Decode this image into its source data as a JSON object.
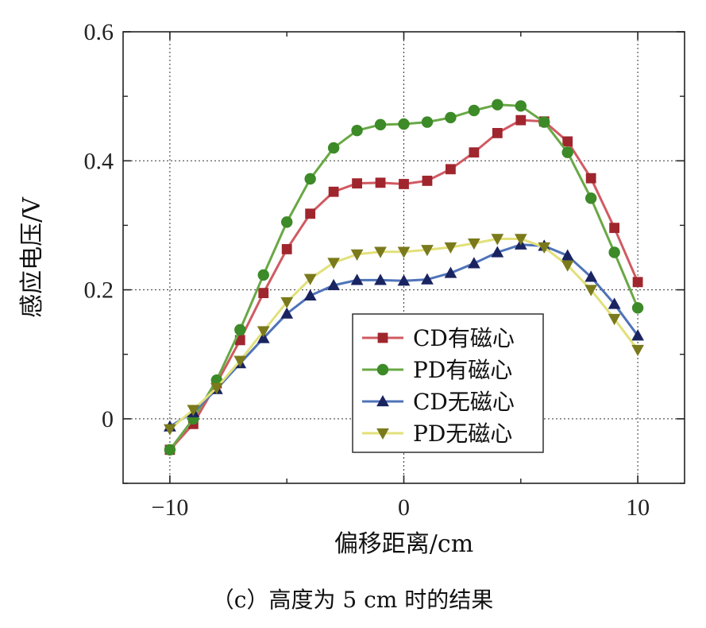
{
  "caption": "（c）高度为 5 cm 时的结果",
  "chart_data": {
    "type": "line",
    "xlabel": "偏移距离/cm",
    "ylabel": "感应电压/V",
    "xlim": [
      -12,
      12
    ],
    "ylim": [
      -0.1,
      0.6
    ],
    "xticks": [
      -10,
      0,
      10
    ],
    "yticks": [
      0,
      0.2,
      0.4,
      0.6
    ],
    "xtick_labels": [
      "−10",
      "0",
      "10"
    ],
    "ytick_labels": [
      "0",
      "0.2",
      "0.4",
      "0.6"
    ],
    "grid": true,
    "legend_position": "lower-right",
    "x": [
      -10,
      -9,
      -8,
      -7,
      -6,
      -5,
      -4,
      -3,
      -2,
      -1,
      0,
      1,
      2,
      3,
      4,
      5,
      6,
      7,
      8,
      9,
      10
    ],
    "series": [
      {
        "name": "CD有磁心",
        "color": "#a0262e",
        "line_color": "#d05a62",
        "marker": "square",
        "values": [
          -0.048,
          -0.008,
          0.055,
          0.122,
          0.195,
          0.263,
          0.318,
          0.352,
          0.365,
          0.366,
          0.364,
          0.369,
          0.387,
          0.413,
          0.443,
          0.463,
          0.461,
          0.43,
          0.373,
          0.296,
          0.212
        ]
      },
      {
        "name": "PD有磁心",
        "color": "#3d8a28",
        "line_color": "#69a845",
        "marker": "circle",
        "values": [
          -0.048,
          0.0,
          0.06,
          0.138,
          0.223,
          0.305,
          0.372,
          0.42,
          0.447,
          0.456,
          0.457,
          0.46,
          0.467,
          0.478,
          0.487,
          0.485,
          0.46,
          0.413,
          0.342,
          0.258,
          0.172
        ]
      },
      {
        "name": "CD无磁心",
        "color": "#1a2460",
        "line_color": "#4f73b8",
        "marker": "triangle-up",
        "values": [
          -0.012,
          0.01,
          0.046,
          0.086,
          0.125,
          0.163,
          0.191,
          0.207,
          0.215,
          0.215,
          0.214,
          0.216,
          0.226,
          0.241,
          0.258,
          0.27,
          0.268,
          0.253,
          0.22,
          0.178,
          0.129
        ]
      },
      {
        "name": "PD无磁心",
        "color": "#7a7a1c",
        "line_color": "#e2e07a",
        "marker": "triangle-down",
        "values": [
          -0.016,
          0.014,
          0.048,
          0.09,
          0.136,
          0.181,
          0.217,
          0.242,
          0.255,
          0.259,
          0.259,
          0.262,
          0.266,
          0.272,
          0.279,
          0.279,
          0.266,
          0.238,
          0.2,
          0.155,
          0.107
        ]
      }
    ]
  }
}
